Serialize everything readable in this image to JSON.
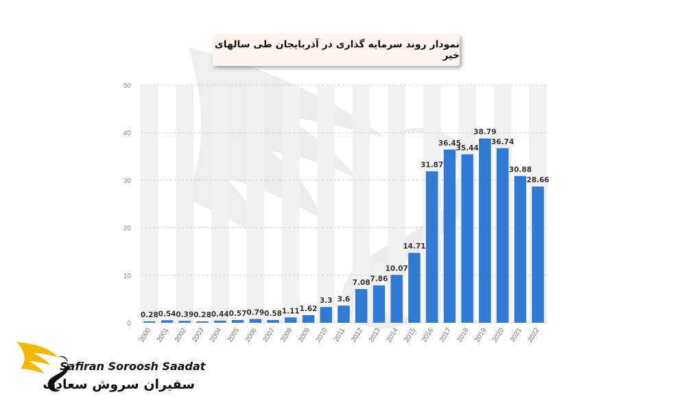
{
  "title": "نمودار روند سرمایه گذاری در آذربایجان طی سالهای خیر",
  "brand": {
    "name_en": "Safiran Soroosh Saadat",
    "name_fa": "سفیران سروش سعادت"
  },
  "colors": {
    "bar": "#2e7ad6",
    "grid": "#cfcfcf",
    "band": "#f1f1f1"
  },
  "chart_data": {
    "type": "bar",
    "title": "نمودار روند سرمایه گذاری در آذربایجان طی سالهای خیر",
    "xlabel": "",
    "ylabel": "",
    "ylim": [
      0,
      50
    ],
    "yticks": [
      "0",
      "10",
      "20",
      "30",
      "40",
      "50"
    ],
    "grid": true,
    "categories": [
      "2000",
      "2001",
      "2002",
      "2003",
      "2004",
      "2005",
      "2006",
      "2007",
      "2008",
      "2009",
      "2010",
      "2011",
      "2012",
      "2013",
      "2014",
      "2015",
      "2016",
      "2017",
      "2018",
      "2019",
      "2020",
      "2021",
      "2022"
    ],
    "values": [
      0.28,
      0.54,
      0.39,
      0.28,
      0.44,
      0.57,
      0.79,
      0.58,
      1.11,
      1.62,
      3.3,
      3.6,
      7.08,
      7.86,
      10.07,
      14.71,
      31.87,
      36.45,
      35.44,
      38.79,
      36.74,
      30.88,
      28.66
    ],
    "value_labels": [
      "0.28",
      "0.54",
      "0.39",
      "0.28",
      "0.44",
      "0.57",
      "0.79",
      "0.58",
      "1.11",
      "1.62",
      "3.3",
      "3.6",
      "7.08",
      "7.86",
      "10.07",
      "14.71",
      "31.87",
      "36.45",
      "35.44",
      "38.79",
      "36.74",
      "30.88",
      "28.66"
    ]
  }
}
